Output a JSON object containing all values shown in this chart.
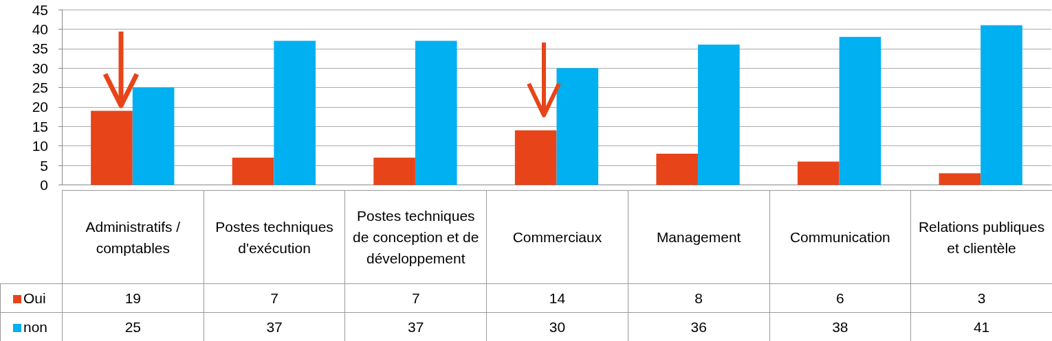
{
  "chart_data": {
    "type": "bar",
    "categories": [
      "Administratifs / comptables",
      "Postes techniques d'exécution",
      "Postes techniques de conception et de développement",
      "Commerciaux",
      "Management",
      "Communication",
      "Relations publiques et clientèle"
    ],
    "series": [
      {
        "name": "Oui",
        "color": "#e8441a",
        "values": [
          19,
          7,
          7,
          14,
          8,
          6,
          3
        ]
      },
      {
        "name": "non",
        "color": "#00b0f0",
        "values": [
          25,
          37,
          37,
          30,
          36,
          38,
          41
        ]
      }
    ],
    "ylim": [
      0,
      45
    ],
    "yticks": [
      0,
      5,
      10,
      15,
      20,
      25,
      30,
      35,
      40,
      45
    ],
    "grid": "y",
    "legend": "bottom",
    "data_labels": true
  }
}
